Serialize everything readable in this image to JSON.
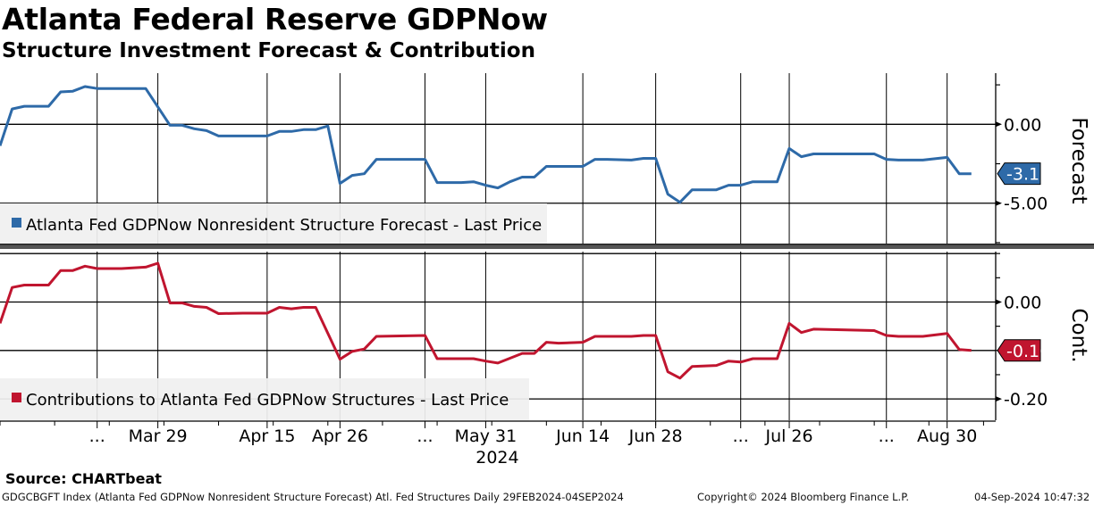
{
  "header": {
    "title": "Atlanta Federal Reserve GDPNow",
    "subtitle": "Structure Investment Forecast & Contribution"
  },
  "footer": {
    "source": "Source: CHARTbeat",
    "description": "GDGCBGFT Index (Atlanta Fed GDPNow Nonresident Structure Forecast) Atl. Fed Structures  Daily 29FEB2024-04SEP2024",
    "copyright": "Copyright© 2024 Bloomberg Finance L.P.",
    "timestamp": "04-Sep-2024 10:47:32"
  },
  "x_axis": {
    "unit": "observation index",
    "xlim": [
      0,
      82
    ],
    "ticks": [
      {
        "idx": 8,
        "label": "..."
      },
      {
        "idx": 13,
        "label": "Mar 29"
      },
      {
        "idx": 22,
        "label": "Apr 15"
      },
      {
        "idx": 28,
        "label": "Apr 26"
      },
      {
        "idx": 35,
        "label": "..."
      },
      {
        "idx": 40,
        "label": "May 31"
      },
      {
        "idx": 48,
        "label": "Jun 14"
      },
      {
        "idx": 54,
        "label": "Jun 28"
      },
      {
        "idx": 61,
        "label": "..."
      },
      {
        "idx": 65,
        "label": "Jul 26"
      },
      {
        "idx": 73,
        "label": "..."
      },
      {
        "idx": 78,
        "label": "Aug 30"
      }
    ],
    "year_label": "2024"
  },
  "chart_data": [
    {
      "type": "line",
      "title": "Forecast",
      "ylabel": "Forecast",
      "ylim": [
        -7.56,
        3.24
      ],
      "yticks": [
        {
          "v": 0,
          "label": "0.00"
        },
        {
          "v": -5,
          "label": "-5.00"
        }
      ],
      "gridlines_y": [
        0,
        -5
      ],
      "minor_ticks": [
        2.5,
        0,
        -2.5,
        -5,
        -7.5
      ],
      "legend": "Atlanta Fed GDPNow Nonresident Structure Forecast - Last Price",
      "legend_placement": "bottom-left",
      "color": "#2e6aa8",
      "last_value_label": "-3.13",
      "series": [
        {
          "name": "Atlanta Fed GDPNow Nonresident Structure Forecast - Last Price",
          "x": [
            0,
            1,
            2,
            4,
            5,
            6,
            7,
            8,
            12,
            14,
            15,
            16,
            17,
            18,
            22,
            23,
            24,
            25,
            26,
            27,
            28,
            29,
            30,
            31,
            35,
            36,
            38,
            39,
            40,
            41,
            42,
            43,
            44,
            45,
            48,
            49,
            50,
            52,
            53,
            54,
            55,
            56,
            57,
            59,
            60,
            61,
            62,
            64,
            65,
            66,
            67,
            72,
            73,
            74,
            76,
            78,
            79,
            80
          ],
          "y": [
            -1.36,
            0.97,
            1.14,
            1.14,
            2.05,
            2.1,
            2.39,
            2.27,
            2.27,
            -0.06,
            -0.06,
            -0.28,
            -0.4,
            -0.74,
            -0.74,
            -0.45,
            -0.45,
            -0.34,
            -0.34,
            -0.11,
            -3.75,
            -3.24,
            -3.13,
            -2.22,
            -2.22,
            -3.69,
            -3.69,
            -3.64,
            -3.86,
            -4.03,
            -3.64,
            -3.35,
            -3.35,
            -2.67,
            -2.67,
            -2.22,
            -2.22,
            -2.27,
            -2.16,
            -2.16,
            -4.43,
            -4.94,
            -4.15,
            -4.15,
            -3.86,
            -3.86,
            -3.64,
            -3.64,
            -1.53,
            -2.05,
            -1.88,
            -1.88,
            -2.22,
            -2.27,
            -2.27,
            -2.1,
            -3.13,
            -3.13
          ]
        }
      ]
    },
    {
      "type": "line",
      "title": "Cont.",
      "ylabel": "Cont.",
      "ylim": [
        -0.244,
        0.104
      ],
      "yticks": [
        {
          "v": 0,
          "label": "0.00"
        },
        {
          "v": -0.2,
          "label": "-0.20"
        }
      ],
      "gridlines_y": [
        0.1,
        0,
        -0.1,
        -0.2
      ],
      "minor_ticks": [
        0.1,
        0.05,
        0,
        -0.05,
        -0.1,
        -0.15,
        -0.2
      ],
      "legend": "Contributions to Atlanta Fed GDPNow Structures - Last Price",
      "legend_placement": "bottom-left",
      "color": "#c0152f",
      "last_value_label": "-0.10",
      "series": [
        {
          "name": "Contributions to Atlanta Fed GDPNow Structures - Last Price",
          "x": [
            0,
            1,
            2,
            4,
            5,
            6,
            7,
            8,
            10,
            12,
            13,
            14,
            15,
            16,
            17,
            18,
            20,
            22,
            23,
            24,
            25,
            26,
            28,
            29,
            30,
            31,
            35,
            36,
            39,
            40,
            41,
            42,
            43,
            44,
            45,
            46,
            48,
            49,
            52,
            53,
            54,
            55,
            56,
            57,
            59,
            60,
            61,
            62,
            64,
            65,
            66,
            67,
            72,
            73,
            74,
            76,
            78,
            79,
            80
          ],
          "y": [
            -0.044,
            0.03,
            0.035,
            0.035,
            0.065,
            0.065,
            0.074,
            0.069,
            0.069,
            0.072,
            0.08,
            -0.002,
            -0.002,
            -0.009,
            -0.011,
            -0.024,
            -0.023,
            -0.023,
            -0.011,
            -0.014,
            -0.011,
            -0.011,
            -0.118,
            -0.102,
            -0.097,
            -0.071,
            -0.069,
            -0.117,
            -0.117,
            -0.122,
            -0.126,
            -0.116,
            -0.106,
            -0.106,
            -0.083,
            -0.085,
            -0.083,
            -0.071,
            -0.071,
            -0.069,
            -0.069,
            -0.144,
            -0.157,
            -0.133,
            -0.131,
            -0.122,
            -0.124,
            -0.117,
            -0.117,
            -0.044,
            -0.063,
            -0.056,
            -0.059,
            -0.069,
            -0.071,
            -0.071,
            -0.065,
            -0.098,
            -0.1
          ]
        }
      ]
    }
  ]
}
